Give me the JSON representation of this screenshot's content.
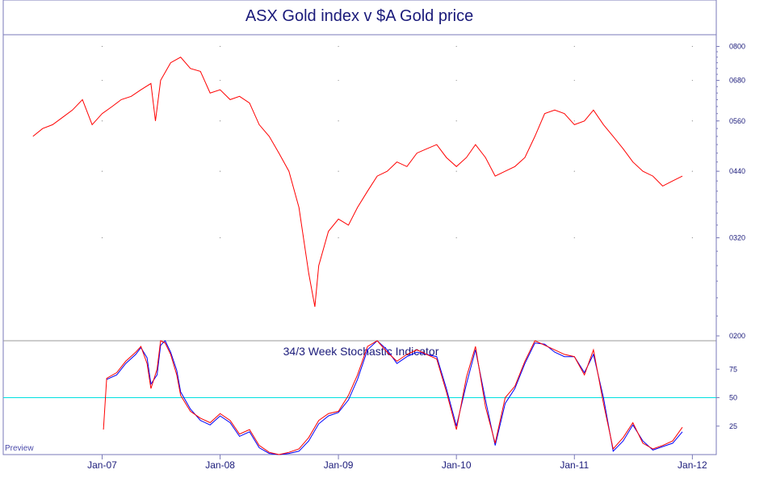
{
  "colors": {
    "frame": "#7a7ab8",
    "price_line": "#ff0000",
    "stoch_k": "#ff0000",
    "stoch_d": "#0000ff",
    "midline": "#00e0e0",
    "text": "#1a1a7a"
  },
  "watermark": "Preview",
  "chart_data": [
    {
      "type": "line",
      "title": "ASX Gold index v $A Gold price",
      "yscale": "log",
      "ylim": [
        0.2,
        0.83
      ],
      "yticks": [
        {
          "value": 0.8,
          "label": "0800"
        },
        {
          "value": 0.68,
          "label": "0680"
        },
        {
          "value": 0.56,
          "label": "0560"
        },
        {
          "value": 0.44,
          "label": "0440"
        },
        {
          "value": 0.32,
          "label": "0320"
        },
        {
          "value": 0.2,
          "label": "0200"
        }
      ],
      "xlim": [
        "2006-03-01",
        "2012-03-15"
      ],
      "xticks": [
        {
          "date": "2007-01-01",
          "label": "Jan-07"
        },
        {
          "date": "2008-01-01",
          "label": "Jan-08"
        },
        {
          "date": "2009-01-01",
          "label": "Jan-09"
        },
        {
          "date": "2010-01-01",
          "label": "Jan-10"
        },
        {
          "date": "2011-01-01",
          "label": "Jan-11"
        },
        {
          "date": "2012-01-01",
          "label": "Jan-12"
        }
      ],
      "grid": true,
      "series": [
        {
          "x": [
            "2006-06-01",
            "2006-07-01",
            "2006-08-01",
            "2006-09-01",
            "2006-10-01",
            "2006-11-01",
            "2006-12-01",
            "2007-01-01",
            "2007-02-01",
            "2007-03-01",
            "2007-04-01",
            "2007-05-01",
            "2007-06-01",
            "2007-06-15",
            "2007-07-01",
            "2007-08-01",
            "2007-09-01",
            "2007-10-01",
            "2007-11-01",
            "2007-12-01",
            "2008-01-01",
            "2008-02-01",
            "2008-03-01",
            "2008-04-01",
            "2008-05-01",
            "2008-06-01",
            "2008-07-01",
            "2008-08-01",
            "2008-09-01",
            "2008-10-01",
            "2008-10-20",
            "2008-11-01",
            "2008-12-01",
            "2009-01-01",
            "2009-02-01",
            "2009-03-01",
            "2009-04-01",
            "2009-05-01",
            "2009-06-01",
            "2009-07-01",
            "2009-08-01",
            "2009-09-01",
            "2009-10-01",
            "2009-11-01",
            "2009-12-01",
            "2010-01-01",
            "2010-02-01",
            "2010-03-01",
            "2010-04-01",
            "2010-05-01",
            "2010-06-01",
            "2010-07-01",
            "2010-08-01",
            "2010-09-01",
            "2010-10-01",
            "2010-11-01",
            "2010-12-01",
            "2011-01-01",
            "2011-02-01",
            "2011-03-01",
            "2011-04-01",
            "2011-05-01",
            "2011-06-01",
            "2011-07-01",
            "2011-08-01",
            "2011-09-01",
            "2011-10-01",
            "2011-11-01",
            "2011-12-01"
          ],
          "y": [
            0.52,
            0.54,
            0.55,
            0.57,
            0.59,
            0.62,
            0.55,
            0.58,
            0.6,
            0.62,
            0.63,
            0.65,
            0.67,
            0.56,
            0.68,
            0.74,
            0.76,
            0.72,
            0.71,
            0.64,
            0.65,
            0.62,
            0.63,
            0.61,
            0.55,
            0.52,
            0.48,
            0.44,
            0.37,
            0.27,
            0.23,
            0.28,
            0.33,
            0.35,
            0.34,
            0.37,
            0.4,
            0.43,
            0.44,
            0.46,
            0.45,
            0.48,
            0.49,
            0.5,
            0.47,
            0.45,
            0.47,
            0.5,
            0.47,
            0.43,
            0.44,
            0.45,
            0.47,
            0.52,
            0.58,
            0.59,
            0.58,
            0.55,
            0.56,
            0.59,
            0.55,
            0.52,
            0.49,
            0.46,
            0.44,
            0.43,
            0.41,
            0.42,
            0.43
          ]
        }
      ]
    },
    {
      "type": "line",
      "title": "34/3 Week Stochastic Indicator",
      "ylim": [
        0,
        100
      ],
      "yticks": [
        {
          "value": 75,
          "label": "75"
        },
        {
          "value": 50,
          "label": "50"
        },
        {
          "value": 25,
          "label": "25"
        }
      ],
      "reference_line": 50,
      "series": [
        {
          "x": [
            "2007-01-05",
            "2007-01-15",
            "2007-02-15",
            "2007-03-15",
            "2007-04-15",
            "2007-05-01",
            "2007-05-20",
            "2007-06-01",
            "2007-06-20",
            "2007-07-01",
            "2007-07-15",
            "2007-08-01",
            "2007-08-20",
            "2007-09-01",
            "2007-10-01",
            "2007-11-01",
            "2007-12-01",
            "2008-01-01",
            "2008-02-01",
            "2008-03-01",
            "2008-04-01",
            "2008-05-01",
            "2008-06-01",
            "2008-07-01",
            "2008-08-01",
            "2008-09-01",
            "2008-10-01",
            "2008-11-01",
            "2008-12-01",
            "2009-01-01",
            "2009-02-01",
            "2009-03-01",
            "2009-04-01",
            "2009-05-01",
            "2009-06-01",
            "2009-07-01",
            "2009-08-01",
            "2009-09-01",
            "2009-10-01",
            "2009-11-01",
            "2009-12-01",
            "2010-01-01",
            "2010-02-01",
            "2010-03-01",
            "2010-04-01",
            "2010-05-01",
            "2010-06-01",
            "2010-07-01",
            "2010-08-01",
            "2010-09-01",
            "2010-10-01",
            "2010-11-01",
            "2010-12-01",
            "2011-01-01",
            "2011-02-01",
            "2011-03-01",
            "2011-04-01",
            "2011-05-01",
            "2011-06-01",
            "2011-07-01",
            "2011-08-01",
            "2011-09-01",
            "2011-10-01",
            "2011-11-01",
            "2011-12-01"
          ],
          "y": [
            22,
            67,
            72,
            82,
            90,
            95,
            80,
            58,
            75,
            100,
            98,
            88,
            70,
            52,
            38,
            32,
            28,
            36,
            30,
            18,
            22,
            8,
            2,
            0,
            2,
            5,
            15,
            30,
            36,
            38,
            52,
            70,
            95,
            100,
            90,
            82,
            88,
            92,
            88,
            84,
            55,
            22,
            68,
            95,
            42,
            10,
            50,
            60,
            82,
            100,
            96,
            92,
            88,
            86,
            70,
            92,
            45,
            5,
            15,
            28,
            10,
            5,
            8,
            12,
            24
          ]
        },
        {
          "x": [
            "2007-01-05",
            "2007-01-15",
            "2007-02-15",
            "2007-03-15",
            "2007-04-15",
            "2007-05-01",
            "2007-05-20",
            "2007-06-01",
            "2007-06-20",
            "2007-07-01",
            "2007-07-15",
            "2007-08-01",
            "2007-08-20",
            "2007-09-01",
            "2007-10-01",
            "2007-11-01",
            "2007-12-01",
            "2008-01-01",
            "2008-02-01",
            "2008-03-01",
            "2008-04-01",
            "2008-05-01",
            "2008-06-01",
            "2008-07-01",
            "2008-08-01",
            "2008-09-01",
            "2008-10-01",
            "2008-11-01",
            "2008-12-01",
            "2009-01-01",
            "2009-02-01",
            "2009-03-01",
            "2009-04-01",
            "2009-05-01",
            "2009-06-01",
            "2009-07-01",
            "2009-08-01",
            "2009-09-01",
            "2009-10-01",
            "2009-11-01",
            "2009-12-01",
            "2010-01-01",
            "2010-02-01",
            "2010-03-01",
            "2010-04-01",
            "2010-05-01",
            "2010-06-01",
            "2010-07-01",
            "2010-08-01",
            "2010-09-01",
            "2010-10-01",
            "2010-11-01",
            "2010-12-01",
            "2011-01-01",
            "2011-02-01",
            "2011-03-01",
            "2011-04-01",
            "2011-05-01",
            "2011-06-01",
            "2011-07-01",
            "2011-08-01",
            "2011-09-01",
            "2011-10-01",
            "2011-11-01",
            "2011-12-01"
          ],
          "y": [
            null,
            66,
            70,
            80,
            88,
            94,
            85,
            62,
            70,
            96,
            100,
            90,
            74,
            55,
            40,
            30,
            26,
            34,
            28,
            16,
            20,
            6,
            1,
            0,
            1,
            3,
            12,
            27,
            34,
            37,
            48,
            66,
            92,
            100,
            92,
            80,
            86,
            90,
            88,
            86,
            58,
            25,
            62,
            92,
            48,
            8,
            45,
            58,
            80,
            98,
            97,
            90,
            86,
            86,
            72,
            88,
            50,
            3,
            12,
            26,
            12,
            4,
            7,
            10,
            20
          ]
        }
      ]
    }
  ]
}
